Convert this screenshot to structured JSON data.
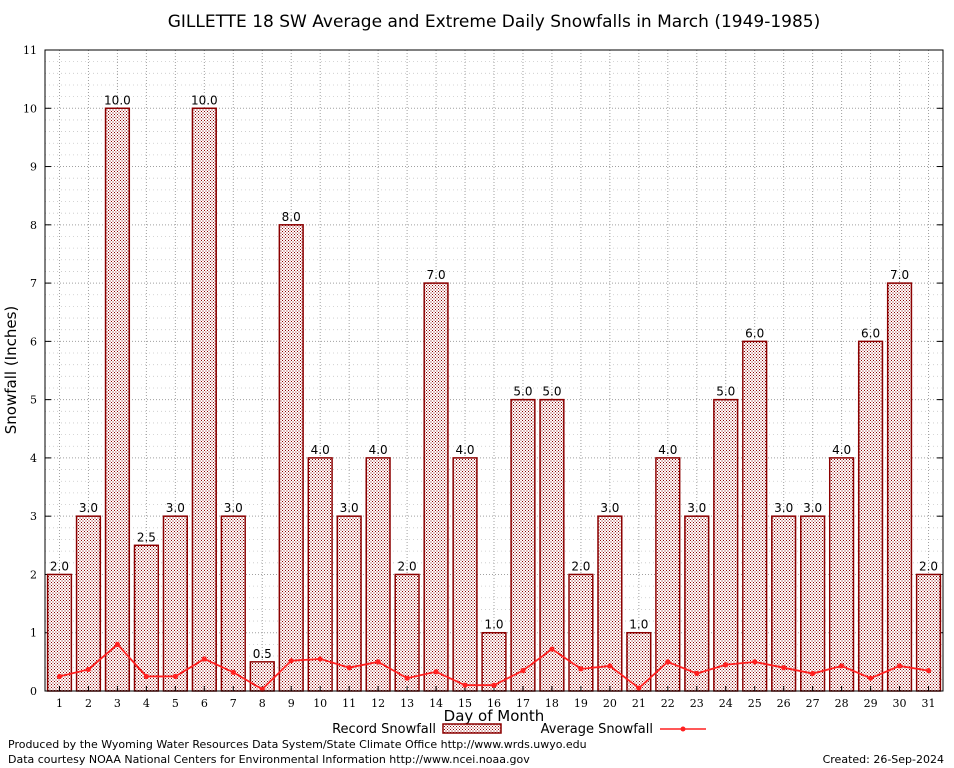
{
  "chart_data": {
    "type": "bar",
    "title": "GILLETTE 18 SW Average and Extreme Daily Snowfalls in March (1949-1985)",
    "xlabel": "Day of Month",
    "ylabel": "Snowfall (Inches)",
    "ylim": [
      0,
      11
    ],
    "yticks": [
      0,
      1,
      2,
      3,
      4,
      5,
      6,
      7,
      8,
      9,
      10,
      11
    ],
    "grid": true,
    "legend_placement": "bottom",
    "categories": [
      "1",
      "2",
      "3",
      "4",
      "5",
      "6",
      "7",
      "8",
      "9",
      "10",
      "11",
      "12",
      "13",
      "14",
      "15",
      "16",
      "17",
      "18",
      "19",
      "20",
      "21",
      "22",
      "23",
      "24",
      "25",
      "26",
      "27",
      "28",
      "29",
      "30",
      "31"
    ],
    "series": [
      {
        "name": "Record Snowfall",
        "kind": "bar",
        "color": "#8b0000",
        "values": [
          2.0,
          3.0,
          10.0,
          2.5,
          3.0,
          10.0,
          3.0,
          0.5,
          8.0,
          4.0,
          3.0,
          4.0,
          2.0,
          7.0,
          4.0,
          1.0,
          5.0,
          5.0,
          2.0,
          3.0,
          1.0,
          4.0,
          3.0,
          5.0,
          6.0,
          3.0,
          3.0,
          4.0,
          6.0,
          7.0,
          2.0
        ],
        "labels": [
          "2.0",
          "3.0",
          "10.0",
          "2.5",
          "3.0",
          "10.0",
          "3.0",
          "0.5",
          "8.0",
          "4.0",
          "3.0",
          "4.0",
          "2.0",
          "7.0",
          "4.0",
          "1.0",
          "5.0",
          "5.0",
          "2.0",
          "3.0",
          "1.0",
          "4.0",
          "3.0",
          "5.0",
          "6.0",
          "3.0",
          "3.0",
          "4.0",
          "6.0",
          "7.0",
          "2.0"
        ]
      },
      {
        "name": "Average Snowfall",
        "kind": "line",
        "color": "#ff2020",
        "values": [
          0.25,
          0.37,
          0.8,
          0.25,
          0.25,
          0.55,
          0.32,
          0.03,
          0.52,
          0.55,
          0.4,
          0.5,
          0.22,
          0.33,
          0.1,
          0.1,
          0.35,
          0.72,
          0.38,
          0.43,
          0.05,
          0.5,
          0.3,
          0.45,
          0.5,
          0.4,
          0.3,
          0.43,
          0.22,
          0.43,
          0.35
        ]
      }
    ]
  },
  "footer": {
    "produced_by": "Produced by the Wyoming Water Resources Data System/State Climate Office http://www.wrds.uwyo.edu",
    "data_courtesy": "Data courtesy NOAA National Centers for Environmental Information http://www.ncei.noaa.gov",
    "created": "Created:  26-Sep-2024"
  }
}
